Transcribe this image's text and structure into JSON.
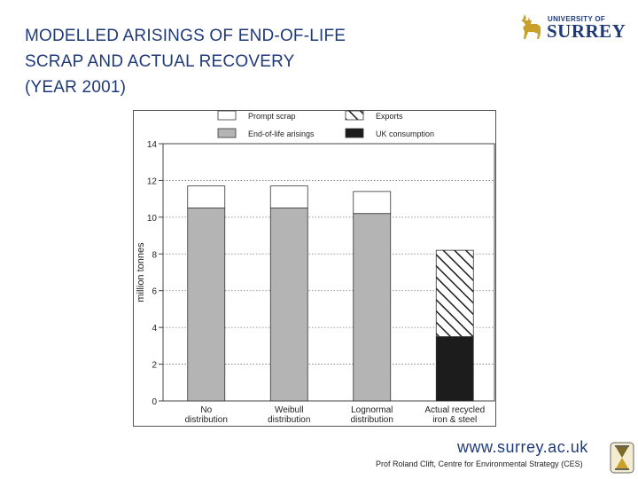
{
  "slide": {
    "title_lines": [
      "MODELLED ARISINGS OF END-OF-LIFE",
      "SCRAP AND ACTUAL RECOVERY",
      "(YEAR 2001)"
    ]
  },
  "logo": {
    "top_text": "UNIVERSITY OF",
    "main_text": "SURREY"
  },
  "footer": {
    "url": "www.surrey.ac.uk",
    "credit": "Prof Roland Clift, Centre for Environmental Strategy (CES)"
  },
  "colors": {
    "title": "#1f3a7a",
    "end_of_life": "#b4b4b4",
    "uk_consumption": "#1c1c1c",
    "prompt_scrap": "#ffffff"
  },
  "chart_data": {
    "type": "bar",
    "stacked": true,
    "ylabel": "million tonnes",
    "xlabel": "",
    "ylim": [
      0,
      14
    ],
    "yticks": [
      0,
      2,
      4,
      6,
      8,
      10,
      12,
      14
    ],
    "grid": "horizontal dotted",
    "legend_position": "top",
    "legend": [
      "Prompt scrap",
      "Exports",
      "End-of-life arisings",
      "UK consumption"
    ],
    "categories": [
      [
        "No",
        "distribution"
      ],
      [
        "Weibull",
        "distribution"
      ],
      [
        "Lognormal",
        "distribution"
      ],
      [
        "Actual recycled",
        "iron & steel"
      ]
    ],
    "series": [
      {
        "name": "End-of-life arisings",
        "values": [
          10.5,
          10.5,
          10.2,
          0
        ]
      },
      {
        "name": "Prompt scrap",
        "values": [
          1.2,
          1.2,
          1.2,
          0
        ]
      },
      {
        "name": "UK consumption",
        "values": [
          0,
          0,
          0,
          3.5
        ]
      },
      {
        "name": "Exports",
        "values": [
          0,
          0,
          0,
          4.7
        ]
      }
    ]
  }
}
